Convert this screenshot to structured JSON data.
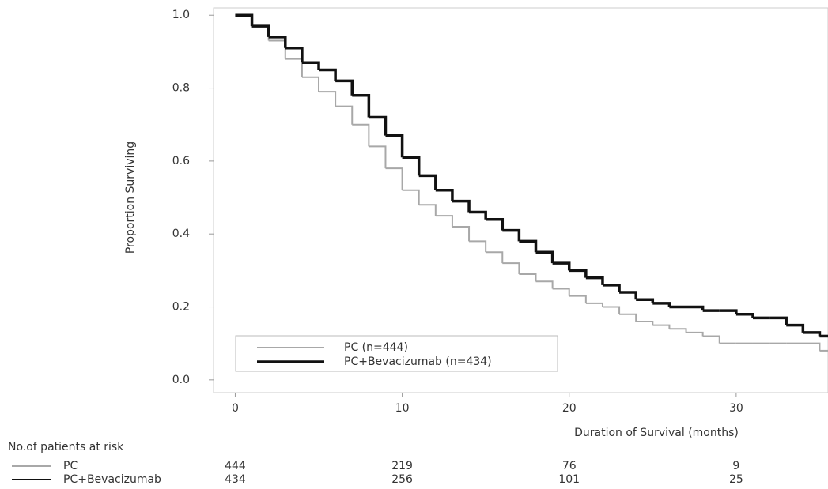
{
  "chart_data": {
    "type": "step",
    "y_label": "Proportion Surviving",
    "x_label": "Duration of Survival (months)",
    "xlim": [
      -1.3,
      35.5
    ],
    "ylim": [
      -0.035,
      1.02
    ],
    "xticks": [
      0,
      10,
      20,
      30
    ],
    "yticks": [
      {
        "value": 0,
        "label": "0.0"
      },
      0.2,
      0.4,
      0.6,
      0.8,
      {
        "value": 1,
        "label": "1.0"
      }
    ],
    "x": [
      0,
      1,
      2,
      3,
      4,
      5,
      6,
      7,
      8,
      9,
      10,
      11,
      12,
      13,
      14,
      15,
      16,
      17,
      18,
      19,
      20,
      21,
      22,
      23,
      24,
      25,
      26,
      27,
      28,
      29,
      30,
      31,
      32,
      33,
      34,
      35
    ],
    "series": [
      {
        "name": "PC (n=444)",
        "color": "#a8a8a8",
        "values": [
          1.0,
          0.97,
          0.93,
          0.88,
          0.83,
          0.79,
          0.75,
          0.7,
          0.64,
          0.58,
          0.52,
          0.48,
          0.45,
          0.42,
          0.38,
          0.35,
          0.32,
          0.29,
          0.27,
          0.25,
          0.23,
          0.21,
          0.2,
          0.18,
          0.16,
          0.15,
          0.14,
          0.13,
          0.12,
          0.1,
          0.1,
          0.1,
          0.1,
          0.1,
          0.1,
          0.08
        ]
      },
      {
        "name": "PC+Bevacizumab (n=434)",
        "color": "#111111",
        "values": [
          1.0,
          0.97,
          0.94,
          0.91,
          0.87,
          0.85,
          0.82,
          0.78,
          0.72,
          0.67,
          0.61,
          0.56,
          0.52,
          0.49,
          0.46,
          0.44,
          0.41,
          0.38,
          0.35,
          0.32,
          0.3,
          0.28,
          0.26,
          0.24,
          0.22,
          0.21,
          0.2,
          0.2,
          0.19,
          0.19,
          0.18,
          0.17,
          0.17,
          0.15,
          0.13,
          0.12
        ]
      }
    ],
    "risk_table": {
      "title": "No.of patients at risk",
      "rows": [
        {
          "name": "PC",
          "counts": [
            444,
            219,
            76,
            9
          ]
        },
        {
          "name": "PC+Bevacizumab",
          "counts": [
            434,
            256,
            101,
            25
          ]
        }
      ]
    }
  }
}
